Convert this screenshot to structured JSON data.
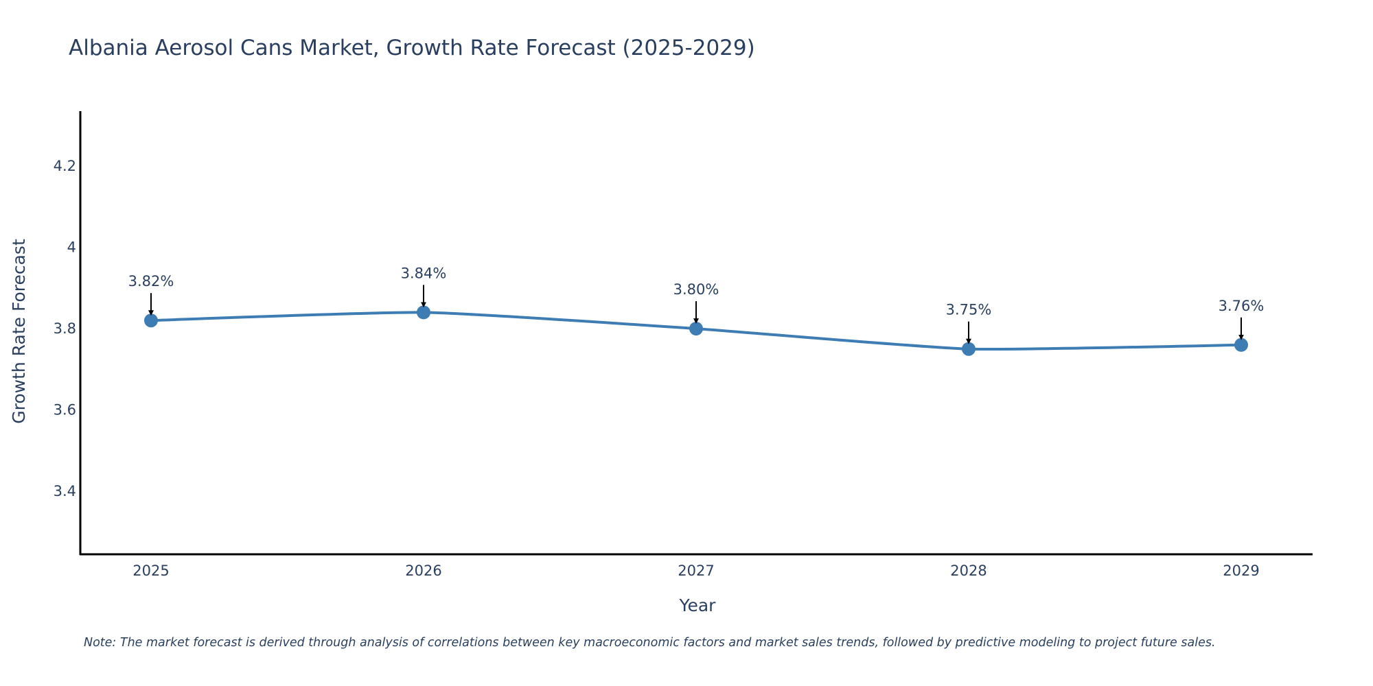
{
  "chart_data": {
    "type": "line",
    "title": "Albania Aerosol Cans Market, Growth Rate Forecast (2025-2029)",
    "xlabel": "Year",
    "ylabel": "Growth Rate Forecast",
    "categories": [
      "2025",
      "2026",
      "2027",
      "2028",
      "2029"
    ],
    "series": [
      {
        "name": "Growth Rate Forecast",
        "values": [
          3.82,
          3.84,
          3.8,
          3.75,
          3.76
        ],
        "color": "#3d7db3"
      }
    ],
    "data_labels": [
      "3.82%",
      "3.84%",
      "3.80%",
      "3.75%",
      "3.76%"
    ],
    "ylim": [
      3.245,
      4.335
    ],
    "yticks": [
      3.4,
      3.6,
      3.8,
      4.0,
      4.2
    ],
    "ytick_labels": [
      "3.4",
      "3.6",
      "3.8",
      "4",
      "4.2"
    ],
    "grid": false,
    "note": "Note: The market forecast is derived through analysis of correlations between key macroeconomic factors and market sales trends, followed by predictive modeling to project future sales."
  }
}
